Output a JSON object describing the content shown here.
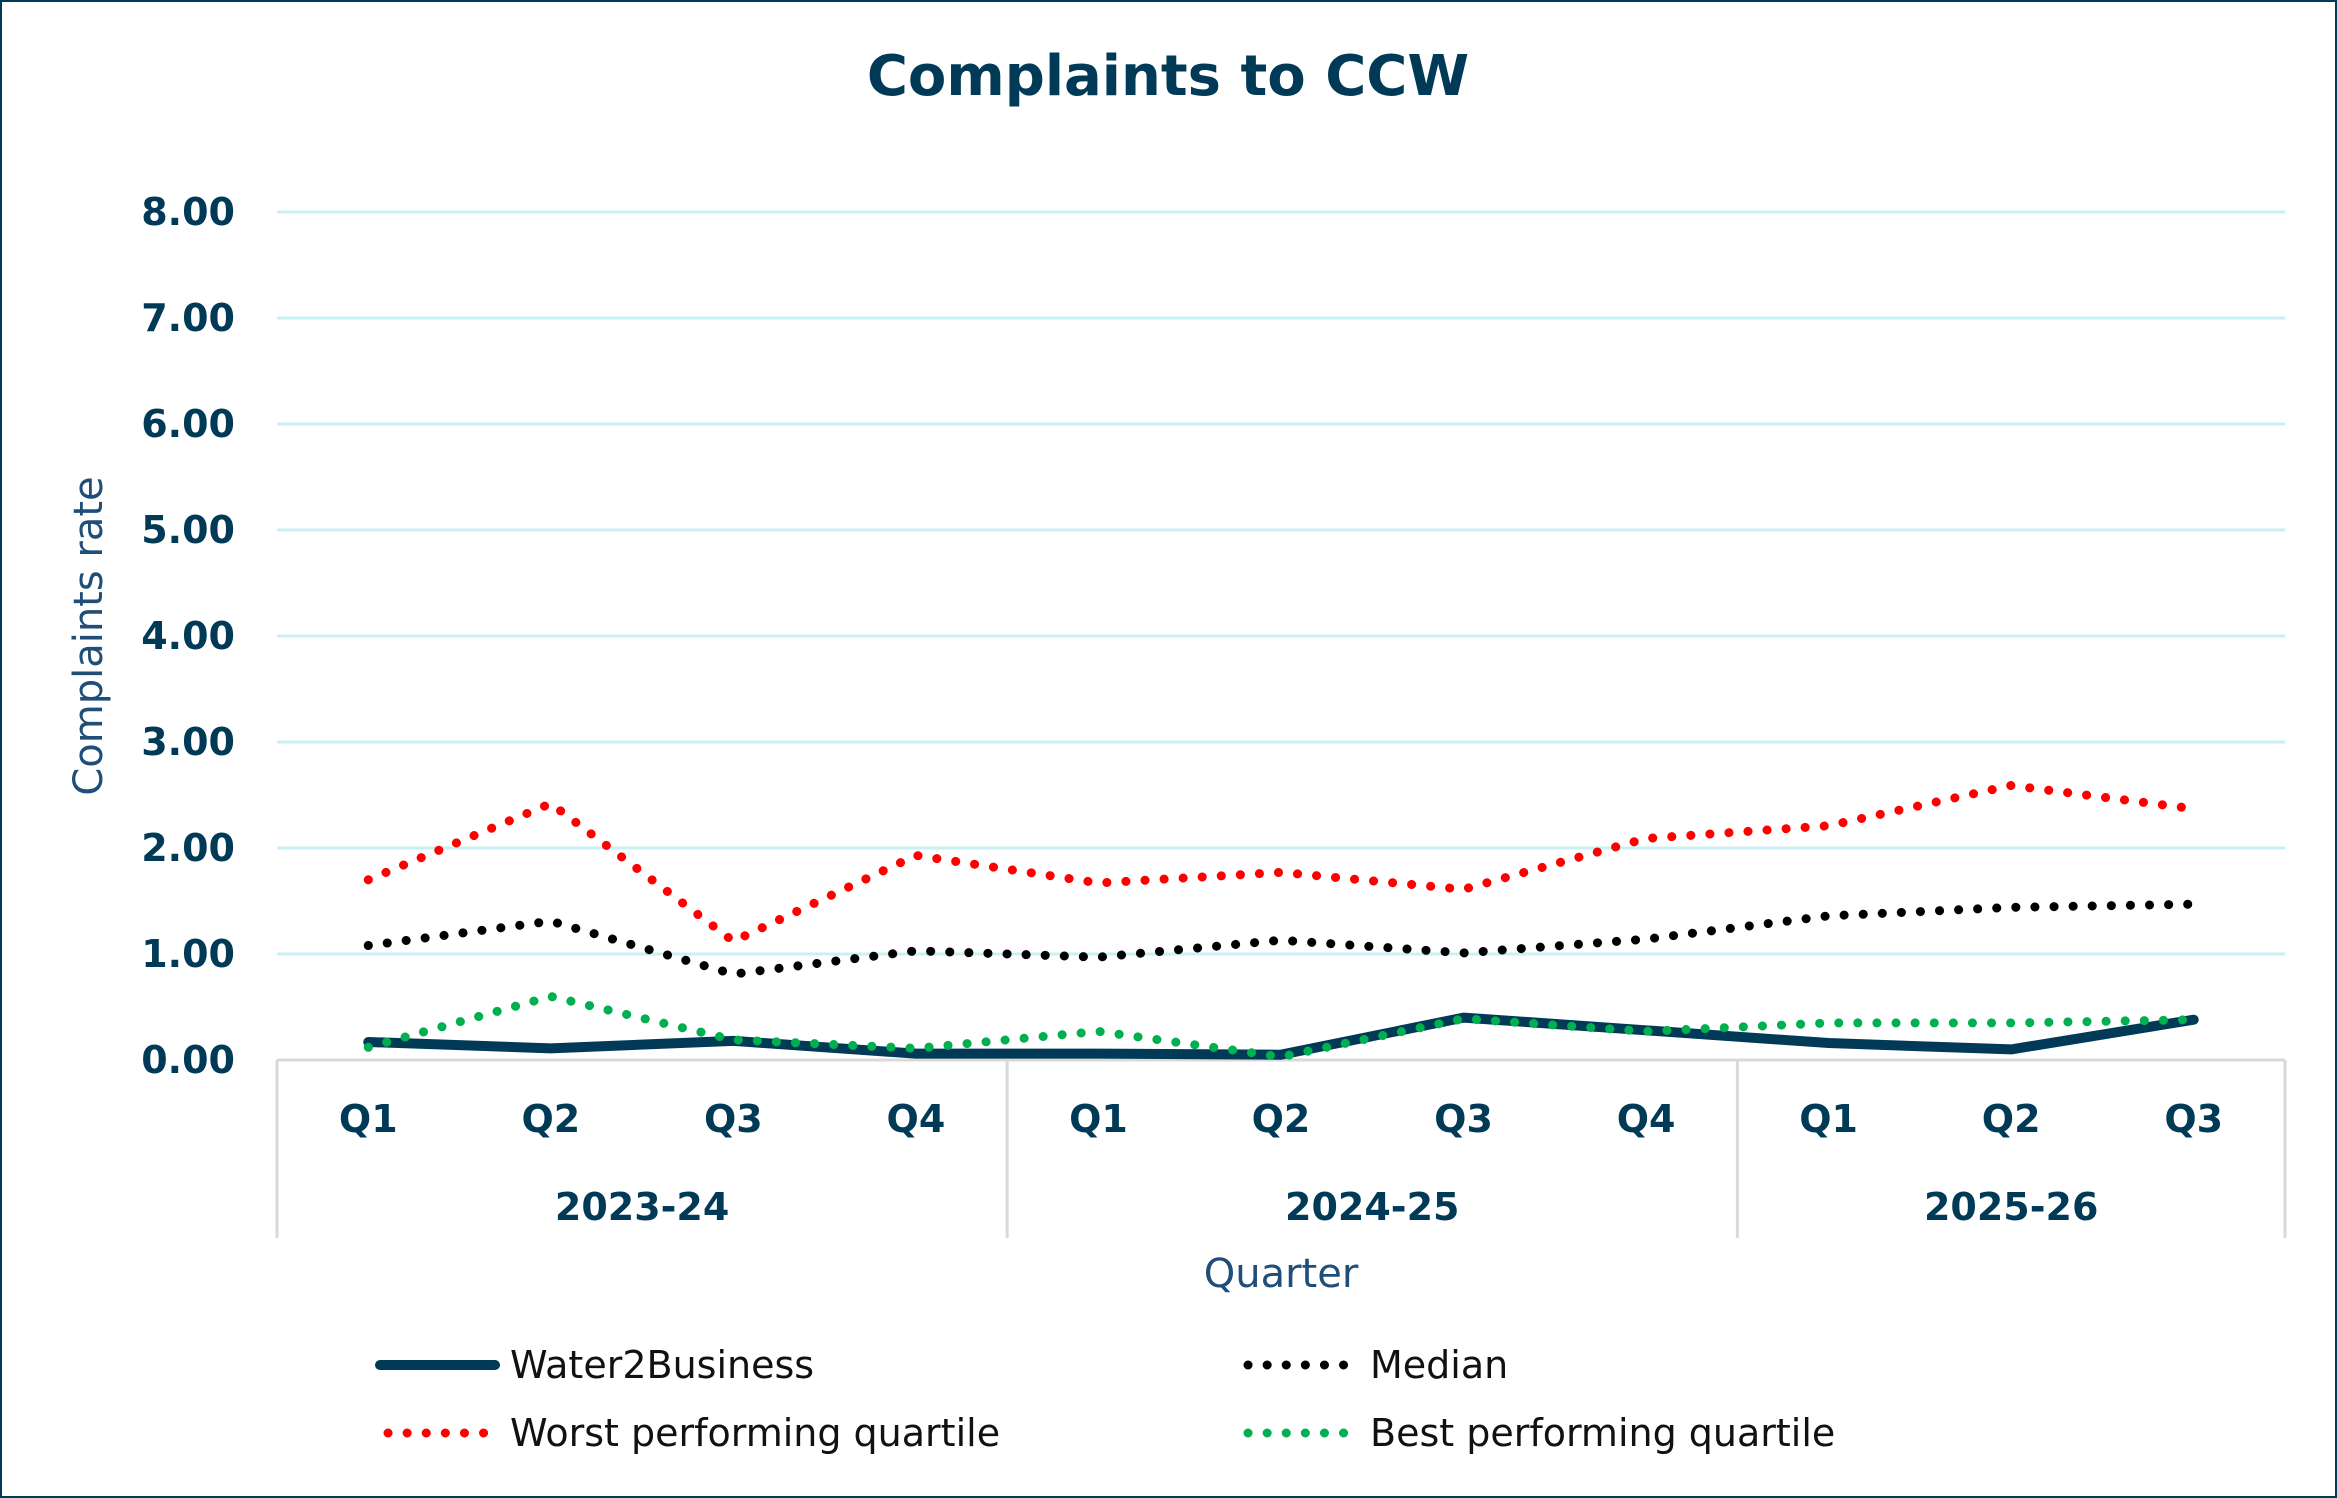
{
  "chart_data": {
    "type": "line",
    "title": "Complaints to CCW",
    "xlabel": "Quarter",
    "ylabel": "Complaints rate",
    "ylim": [
      0,
      8
    ],
    "yticks": [
      "0.00",
      "1.00",
      "2.00",
      "3.00",
      "4.00",
      "5.00",
      "6.00",
      "7.00",
      "8.00"
    ],
    "grid": true,
    "legend_position": "bottom",
    "groups": [
      {
        "label": "2023-24",
        "quarters": [
          "Q1",
          "Q2",
          "Q3",
          "Q4"
        ]
      },
      {
        "label": "2024-25",
        "quarters": [
          "Q1",
          "Q2",
          "Q3",
          "Q4"
        ]
      },
      {
        "label": "2025-26",
        "quarters": [
          "Q1",
          "Q2",
          "Q3"
        ]
      }
    ],
    "categories": [
      "2023-24 Q1",
      "2023-24 Q2",
      "2023-24 Q3",
      "2023-24 Q4",
      "2024-25 Q1",
      "2024-25 Q2",
      "2024-25 Q3",
      "2024-25 Q4",
      "2025-26 Q1",
      "2025-26 Q2",
      "2025-26 Q3"
    ],
    "series": [
      {
        "name": "Water2Business",
        "color": "#003A57",
        "style": "solid",
        "values": [
          0.17,
          0.11,
          0.18,
          0.06,
          0.06,
          0.05,
          0.4,
          0.28,
          0.16,
          0.1,
          0.38
        ]
      },
      {
        "name": "Median",
        "color": "#000000",
        "style": "dotted",
        "values": [
          1.08,
          1.31,
          0.81,
          1.03,
          0.97,
          1.13,
          1.01,
          1.14,
          1.36,
          1.44,
          1.47
        ]
      },
      {
        "name": "Worst performing quartile",
        "color": "#FF0000",
        "style": "dotted",
        "values": [
          1.7,
          2.42,
          1.12,
          1.93,
          1.67,
          1.77,
          1.61,
          2.09,
          2.21,
          2.59,
          2.37
        ]
      },
      {
        "name": "Best performing quartile",
        "color": "#00B050",
        "style": "dotted",
        "values": [
          0.12,
          0.6,
          0.19,
          0.11,
          0.27,
          0.03,
          0.39,
          0.27,
          0.35,
          0.35,
          0.38
        ]
      }
    ]
  },
  "colors": {
    "text": "#003A57",
    "grid": "#C9F0F4",
    "axis": "#D9D9D9"
  }
}
